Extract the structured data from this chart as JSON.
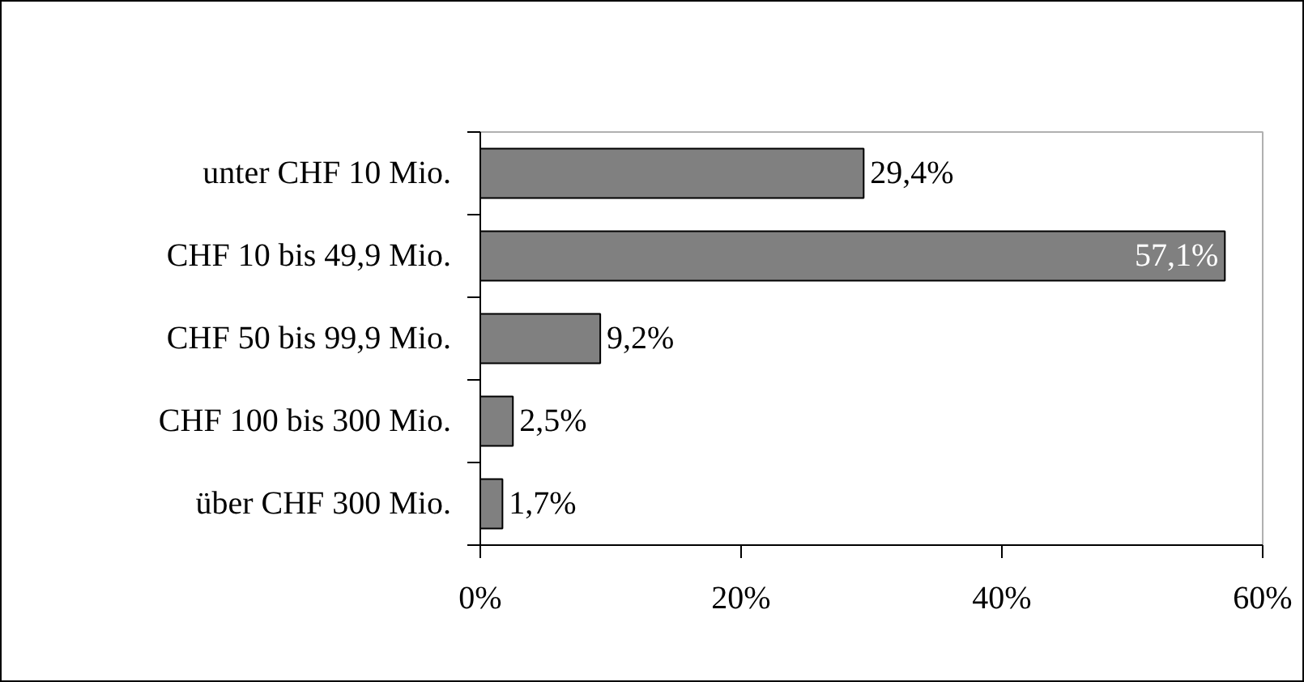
{
  "chart_data": {
    "type": "bar",
    "orientation": "horizontal",
    "categories": [
      "unter CHF 10 Mio.",
      "CHF 10 bis 49,9 Mio.",
      "CHF 50 bis 99,9 Mio.",
      "CHF 100 bis 300 Mio.",
      "über CHF 300 Mio."
    ],
    "values": [
      29.4,
      57.1,
      9.2,
      2.5,
      1.7
    ],
    "value_labels": [
      "29,4%",
      "57,1%",
      "9,2%",
      "2,5%",
      "1,7%"
    ],
    "color": "#808080",
    "xlim": [
      0,
      60
    ],
    "xticks": [
      {
        "value": 0,
        "label": "0%"
      },
      {
        "value": 20,
        "label": "20%"
      },
      {
        "value": 40,
        "label": "40%"
      },
      {
        "value": 60,
        "label": "60%"
      }
    ],
    "grid": false
  }
}
